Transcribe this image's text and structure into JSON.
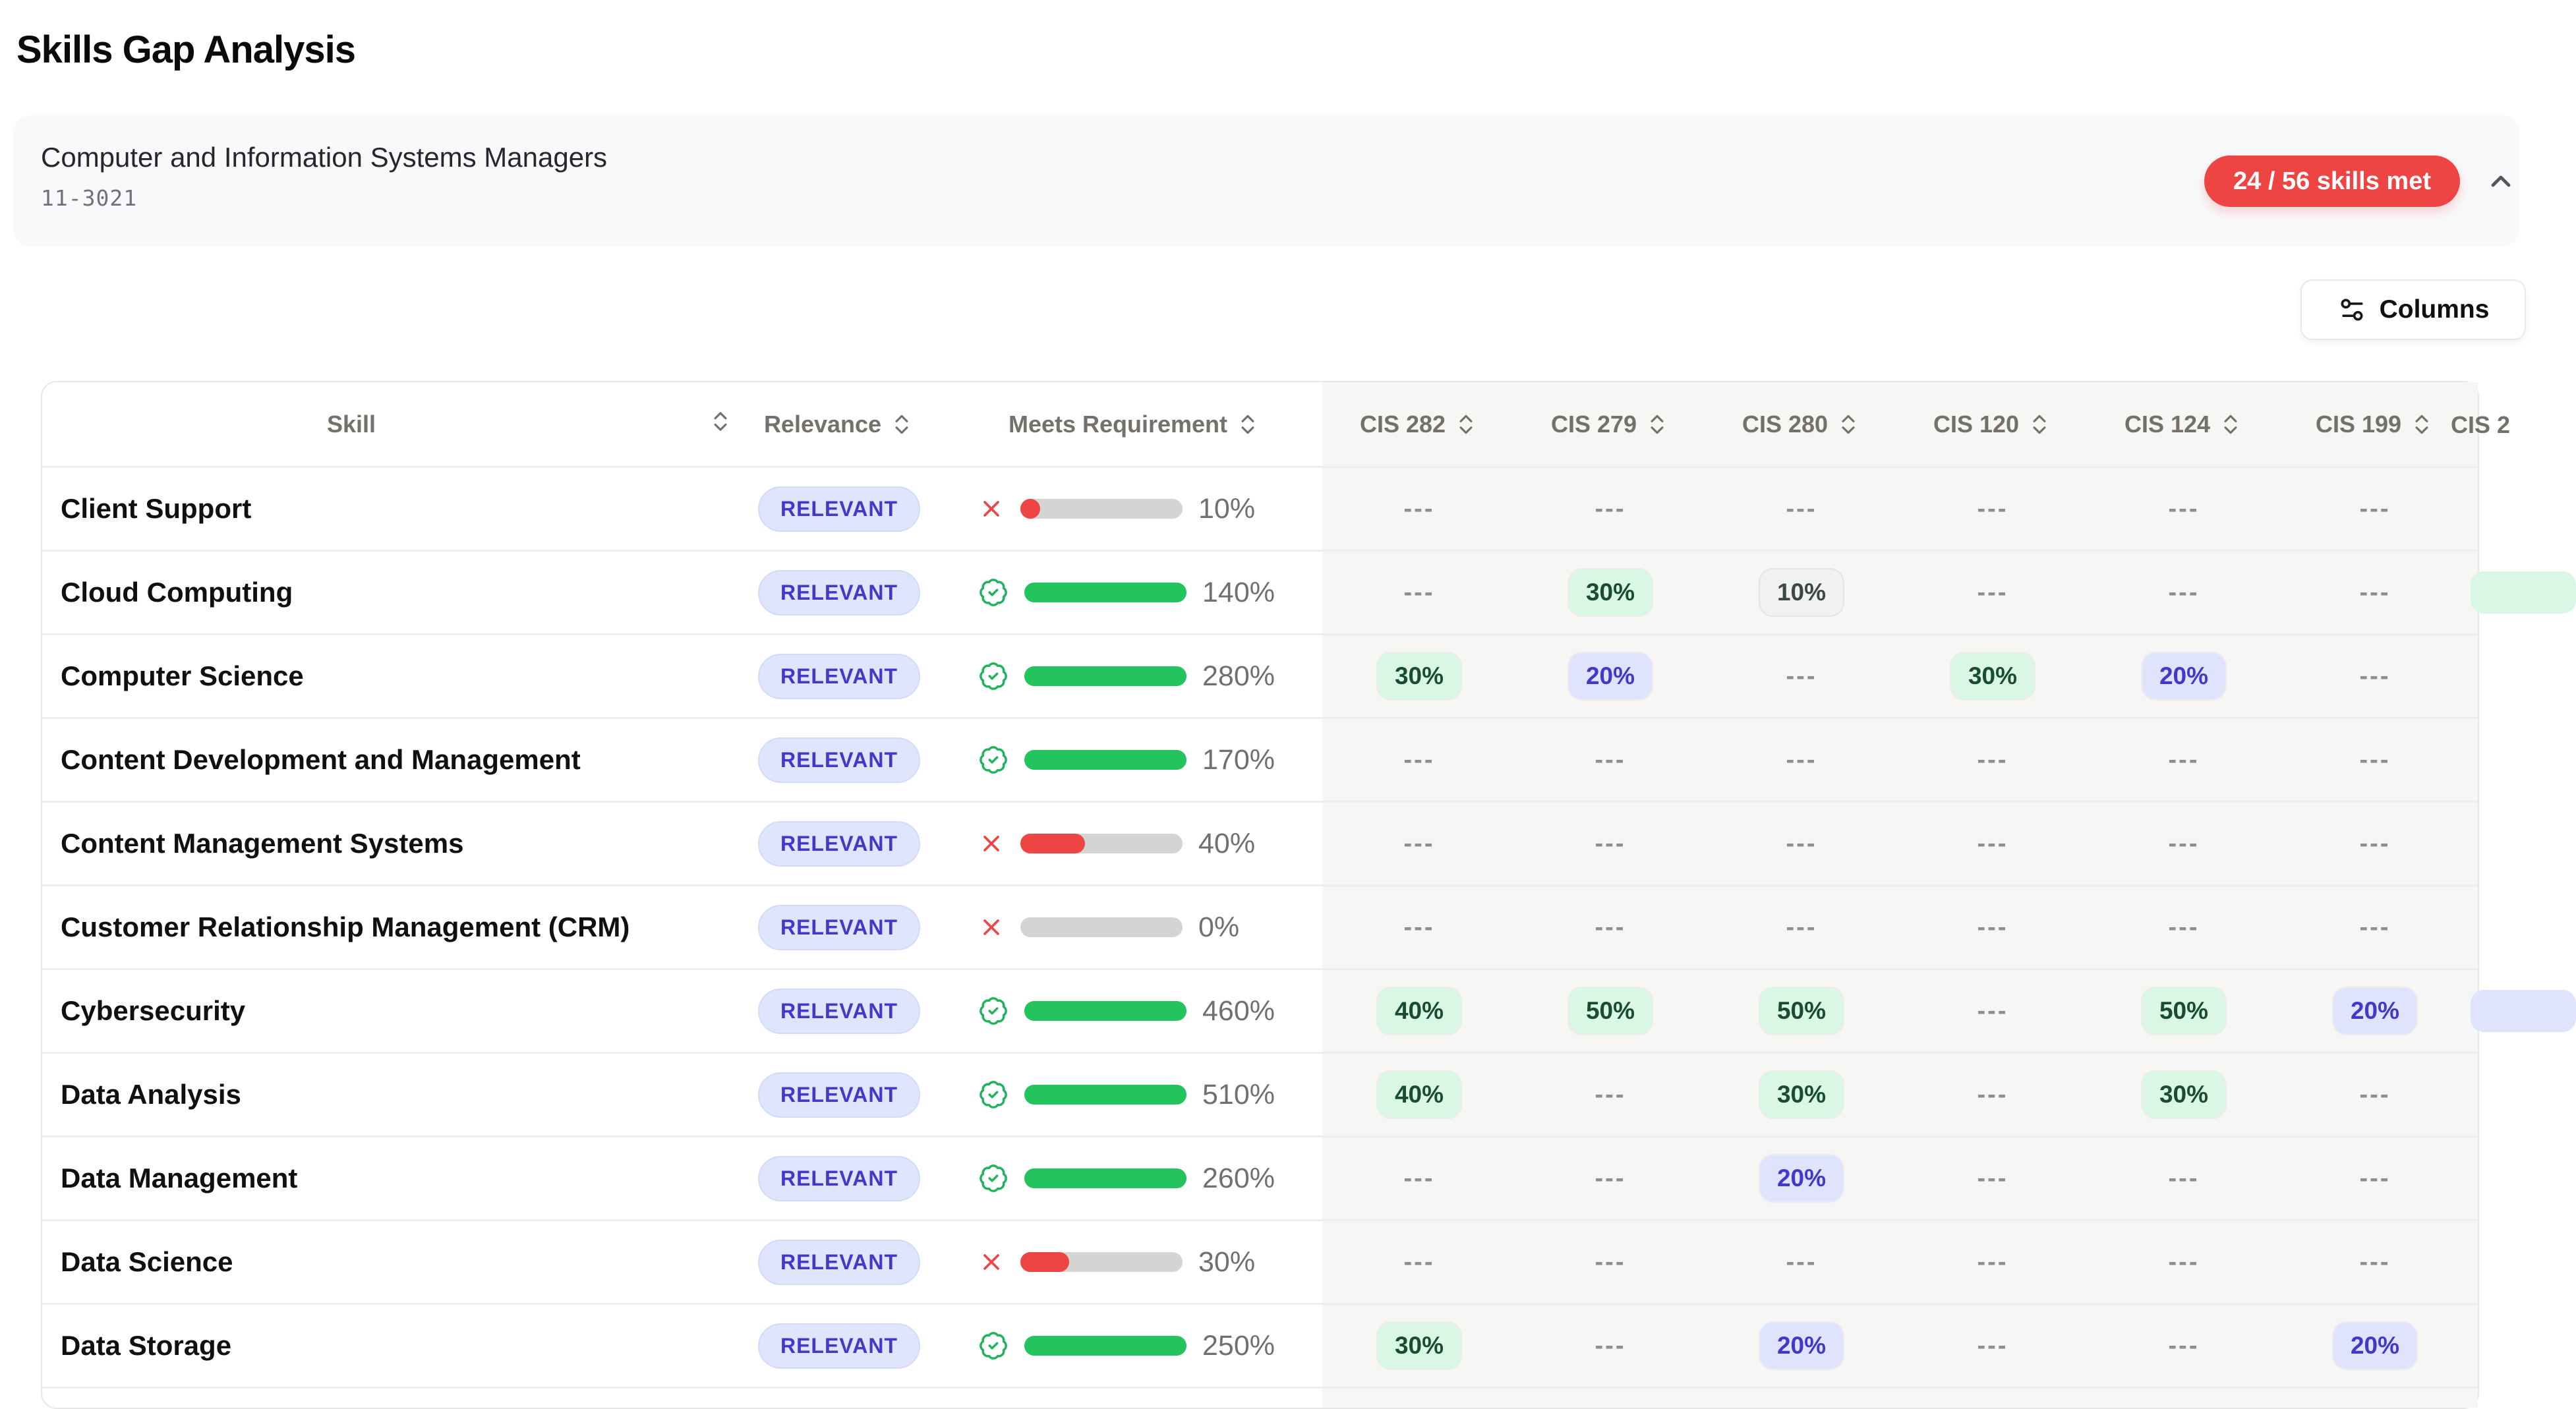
{
  "page": {
    "title": "Skills Gap Analysis"
  },
  "occupation": {
    "title": "Computer and Information Systems Managers",
    "code": "11-3021",
    "skills_met_badge": "24 / 56 skills met"
  },
  "toolbar": {
    "columns_label": "Columns"
  },
  "icons": {
    "collapse": "chevron-up-icon",
    "columns": "sliders-icon",
    "sort": "chevrons-up-down-icon",
    "met": "badge-check-icon",
    "not_met": "x-icon"
  },
  "colors": {
    "badge_red": "#ef4444",
    "bar_green": "#23c45d",
    "bar_red": "#ef4444",
    "bar_track": "#d4d4d2",
    "relevant_badge_bg": "#dfe5fc",
    "relevant_badge_text": "#4338ca",
    "pill_green_bg": "#d9f7e4",
    "pill_green_text": "#1a4d30",
    "pill_blue_bg": "#dfe4fc",
    "pill_blue_text": "#4338ca",
    "pill_gray_bg": "#f1f2f0",
    "panel_gray": "#f6f6f5"
  },
  "table": {
    "headers": {
      "skill": "Skill",
      "relevance": "Relevance",
      "meets_requirement": "Meets Requirement",
      "courses": [
        "CIS 282",
        "CIS 279",
        "CIS 280",
        "CIS 120",
        "CIS 124",
        "CIS 199"
      ],
      "clipped_course": "CIS 2"
    },
    "rows": [
      {
        "skill": "Client Support",
        "relevance": "RELEVANT",
        "met": false,
        "percent": "10%",
        "fill": 10,
        "values": [
          {
            "value": "---",
            "tone": "dash"
          },
          {
            "value": "---",
            "tone": "dash"
          },
          {
            "value": "---",
            "tone": "dash"
          },
          {
            "value": "---",
            "tone": "dash"
          },
          {
            "value": "---",
            "tone": "dash"
          },
          {
            "value": "---",
            "tone": "dash"
          }
        ],
        "edge_pill": null
      },
      {
        "skill": "Cloud Computing",
        "relevance": "RELEVANT",
        "met": true,
        "percent": "140%",
        "fill": 100,
        "values": [
          {
            "value": "---",
            "tone": "dash"
          },
          {
            "value": "30%",
            "tone": "green"
          },
          {
            "value": "10%",
            "tone": "gray"
          },
          {
            "value": "---",
            "tone": "dash"
          },
          {
            "value": "---",
            "tone": "dash"
          },
          {
            "value": "---",
            "tone": "dash"
          }
        ],
        "edge_pill": "green"
      },
      {
        "skill": "Computer Science",
        "relevance": "RELEVANT",
        "met": true,
        "percent": "280%",
        "fill": 100,
        "values": [
          {
            "value": "30%",
            "tone": "green"
          },
          {
            "value": "20%",
            "tone": "blue"
          },
          {
            "value": "---",
            "tone": "dash"
          },
          {
            "value": "30%",
            "tone": "green"
          },
          {
            "value": "20%",
            "tone": "blue"
          },
          {
            "value": "---",
            "tone": "dash"
          }
        ],
        "edge_pill": null
      },
      {
        "skill": "Content Development and Management",
        "relevance": "RELEVANT",
        "met": true,
        "percent": "170%",
        "fill": 100,
        "values": [
          {
            "value": "---",
            "tone": "dash"
          },
          {
            "value": "---",
            "tone": "dash"
          },
          {
            "value": "---",
            "tone": "dash"
          },
          {
            "value": "---",
            "tone": "dash"
          },
          {
            "value": "---",
            "tone": "dash"
          },
          {
            "value": "---",
            "tone": "dash"
          }
        ],
        "edge_pill": null
      },
      {
        "skill": "Content Management Systems",
        "relevance": "RELEVANT",
        "met": false,
        "percent": "40%",
        "fill": 40,
        "values": [
          {
            "value": "---",
            "tone": "dash"
          },
          {
            "value": "---",
            "tone": "dash"
          },
          {
            "value": "---",
            "tone": "dash"
          },
          {
            "value": "---",
            "tone": "dash"
          },
          {
            "value": "---",
            "tone": "dash"
          },
          {
            "value": "---",
            "tone": "dash"
          }
        ],
        "edge_pill": null
      },
      {
        "skill": "Customer Relationship Management (CRM)",
        "relevance": "RELEVANT",
        "met": false,
        "percent": "0%",
        "fill": 0,
        "values": [
          {
            "value": "---",
            "tone": "dash"
          },
          {
            "value": "---",
            "tone": "dash"
          },
          {
            "value": "---",
            "tone": "dash"
          },
          {
            "value": "---",
            "tone": "dash"
          },
          {
            "value": "---",
            "tone": "dash"
          },
          {
            "value": "---",
            "tone": "dash"
          }
        ],
        "edge_pill": null
      },
      {
        "skill": "Cybersecurity",
        "relevance": "RELEVANT",
        "met": true,
        "percent": "460%",
        "fill": 100,
        "values": [
          {
            "value": "40%",
            "tone": "green"
          },
          {
            "value": "50%",
            "tone": "green"
          },
          {
            "value": "50%",
            "tone": "green"
          },
          {
            "value": "---",
            "tone": "dash"
          },
          {
            "value": "50%",
            "tone": "green"
          },
          {
            "value": "20%",
            "tone": "blue"
          }
        ],
        "edge_pill": "blue"
      },
      {
        "skill": "Data Analysis",
        "relevance": "RELEVANT",
        "met": true,
        "percent": "510%",
        "fill": 100,
        "values": [
          {
            "value": "40%",
            "tone": "green"
          },
          {
            "value": "---",
            "tone": "dash"
          },
          {
            "value": "30%",
            "tone": "green"
          },
          {
            "value": "---",
            "tone": "dash"
          },
          {
            "value": "30%",
            "tone": "green"
          },
          {
            "value": "---",
            "tone": "dash"
          }
        ],
        "edge_pill": null
      },
      {
        "skill": "Data Management",
        "relevance": "RELEVANT",
        "met": true,
        "percent": "260%",
        "fill": 100,
        "values": [
          {
            "value": "---",
            "tone": "dash"
          },
          {
            "value": "---",
            "tone": "dash"
          },
          {
            "value": "20%",
            "tone": "blue"
          },
          {
            "value": "---",
            "tone": "dash"
          },
          {
            "value": "---",
            "tone": "dash"
          },
          {
            "value": "---",
            "tone": "dash"
          }
        ],
        "edge_pill": null
      },
      {
        "skill": "Data Science",
        "relevance": "RELEVANT",
        "met": false,
        "percent": "30%",
        "fill": 30,
        "values": [
          {
            "value": "---",
            "tone": "dash"
          },
          {
            "value": "---",
            "tone": "dash"
          },
          {
            "value": "---",
            "tone": "dash"
          },
          {
            "value": "---",
            "tone": "dash"
          },
          {
            "value": "---",
            "tone": "dash"
          },
          {
            "value": "---",
            "tone": "dash"
          }
        ],
        "edge_pill": null
      },
      {
        "skill": "Data Storage",
        "relevance": "RELEVANT",
        "met": true,
        "percent": "250%",
        "fill": 100,
        "values": [
          {
            "value": "30%",
            "tone": "green"
          },
          {
            "value": "---",
            "tone": "dash"
          },
          {
            "value": "20%",
            "tone": "blue"
          },
          {
            "value": "---",
            "tone": "dash"
          },
          {
            "value": "---",
            "tone": "dash"
          },
          {
            "value": "20%",
            "tone": "blue"
          }
        ],
        "edge_pill": null
      }
    ]
  }
}
